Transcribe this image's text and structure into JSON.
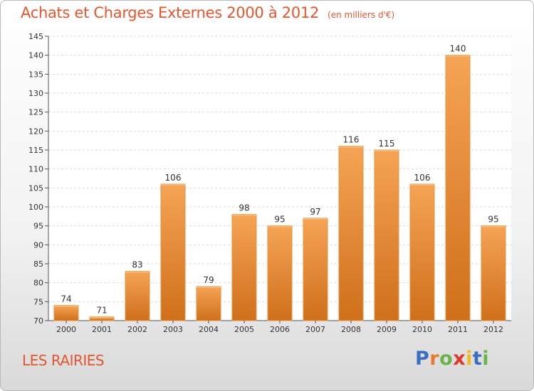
{
  "header": {
    "title": "Achats et Charges Externes 2000 à 2012",
    "subtitle": "(en milliers d'€)"
  },
  "footer": {
    "place": "LES RAIRIES",
    "logo_text": "Proxiti",
    "logo_colors": [
      "#3a6fbf",
      "#e8792a",
      "#6ab34a",
      "#e0362c",
      "#f2b81c",
      "#3a6fbf",
      "#6ab34a"
    ]
  },
  "colors": {
    "bar_top": "#f5a455",
    "bar_bottom": "#cf6f1b",
    "bar_edge": "#e9933f",
    "text_accent": "#e4572e",
    "grid": "#dadada"
  },
  "chart_data": {
    "type": "bar",
    "title": "Achats et Charges Externes 2000 à 2012",
    "subtitle": "(en milliers d'€)",
    "xlabel": "",
    "ylabel": "",
    "categories": [
      "2000",
      "2001",
      "2002",
      "2003",
      "2004",
      "2005",
      "2006",
      "2007",
      "2008",
      "2009",
      "2010",
      "2011",
      "2012"
    ],
    "values": [
      74,
      71,
      83,
      106,
      79,
      98,
      95,
      97,
      116,
      115,
      106,
      140,
      95
    ],
    "ylim": [
      70,
      145
    ],
    "yticks": [
      70,
      75,
      80,
      85,
      90,
      95,
      100,
      105,
      110,
      115,
      120,
      125,
      130,
      135,
      140,
      145
    ],
    "grid": true,
    "data_labels": true
  }
}
